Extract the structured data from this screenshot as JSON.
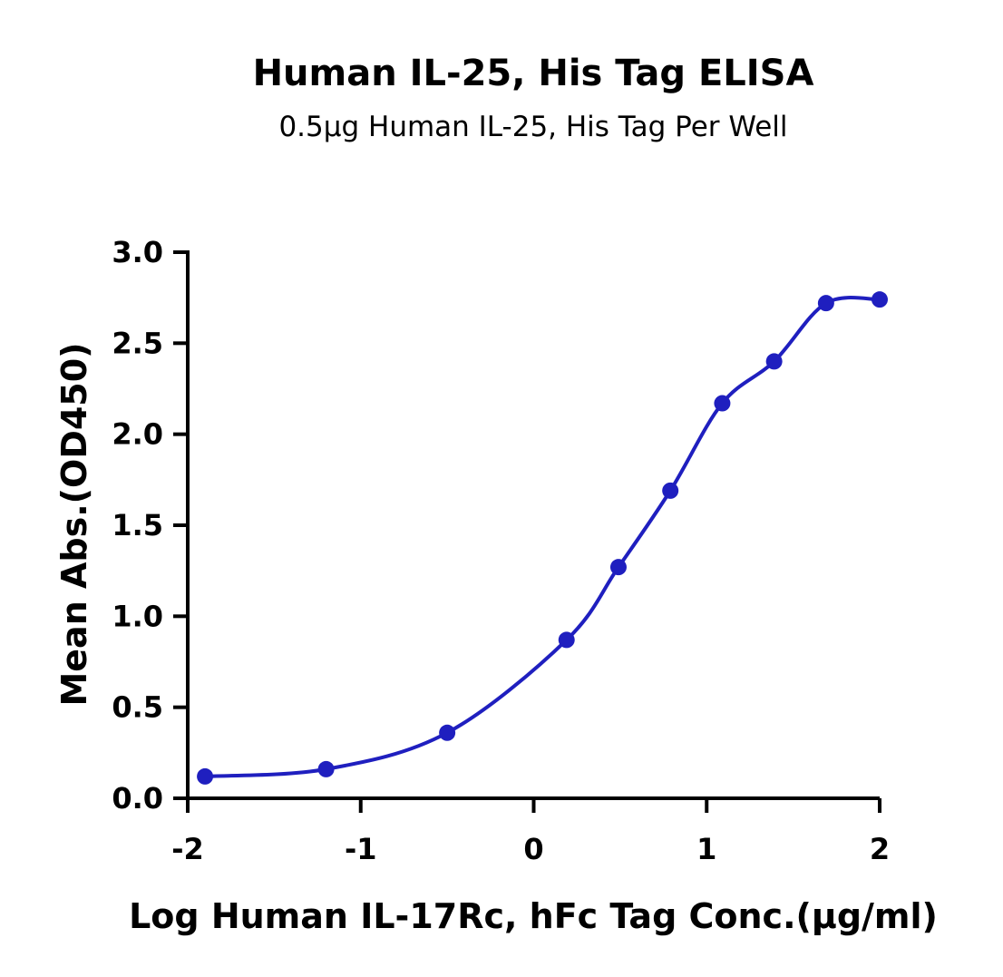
{
  "chart_data": {
    "type": "scatter",
    "title": "Human IL-25, His Tag ELISA",
    "subtitle": "0.5µg Human IL-25, His Tag Per Well",
    "xlabel": "Log Human IL-17Rc, hFc Tag Conc.(µg/ml)",
    "ylabel": "Mean Abs.(OD450)",
    "xlim": [
      -2,
      2
    ],
    "ylim": [
      0,
      3
    ],
    "x_ticks": [
      -2,
      -1,
      0,
      1,
      2
    ],
    "x_tick_labels": [
      "-2",
      "-1",
      "0",
      "1",
      "2"
    ],
    "y_ticks": [
      0,
      0.5,
      1,
      1.5,
      2,
      2.5,
      3
    ],
    "y_tick_labels": [
      "0.0",
      "0.5",
      "1.0",
      "1.5",
      "2.0",
      "2.5",
      "3.0"
    ],
    "grid": false,
    "series": [
      {
        "x": [
          -1.9,
          -1.2,
          -0.5,
          0.19,
          0.49,
          0.79,
          1.09,
          1.39,
          1.69,
          2.0
        ],
        "y": [
          0.12,
          0.16,
          0.36,
          0.87,
          1.27,
          1.69,
          2.17,
          2.4,
          2.72,
          2.74
        ],
        "color": "#1f1fbf",
        "fit": "4PL sigmoid"
      }
    ]
  }
}
